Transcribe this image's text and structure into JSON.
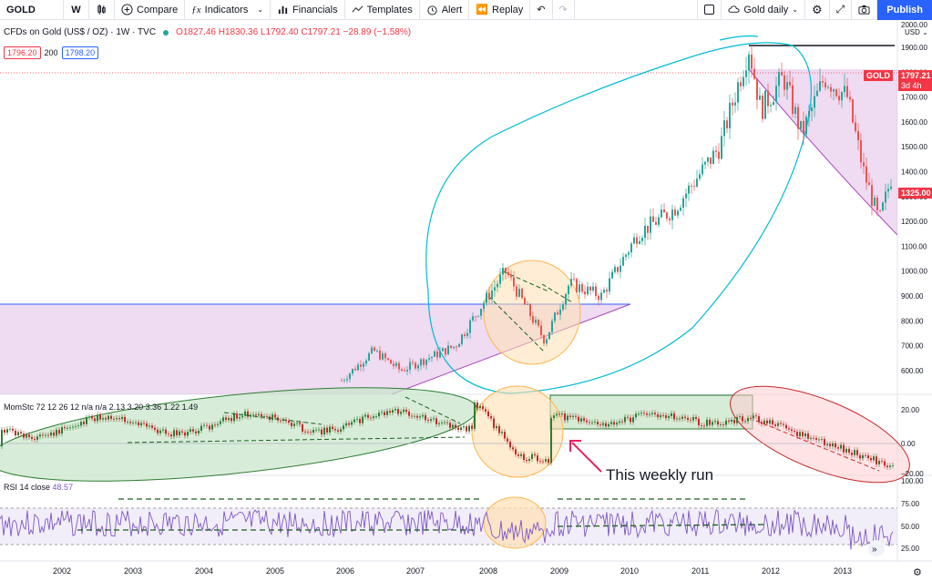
{
  "toolbar": {
    "symbol": "GOLD",
    "interval": "W",
    "compare": "Compare",
    "indicators": "Indicators",
    "financials": "Financials",
    "templates": "Templates",
    "alert": "Alert",
    "replay": "Replay",
    "layout_name": "Gold daily",
    "publish": "Publish"
  },
  "legend": {
    "title": "CFDs on Gold (US$ / OZ) · 1W · TVC",
    "ohlc": "O1827.46  H1830.36  L1792.40  C1797.21  −28.89 (−1.58%)",
    "bid": "1796.20",
    "spread": "200",
    "ask": "1798.20"
  },
  "price_axis": {
    "currency": "USD",
    "labels": [
      "2000.00",
      "1900.00",
      "1800.00",
      "1700.00",
      "1600.00",
      "1500.00",
      "1400.00",
      "1300.00",
      "1200.00",
      "1100.00",
      "1000.00",
      "900.00",
      "800.00",
      "700.00",
      "600.00"
    ],
    "last_price_tag": "GOLD",
    "last_price": "1797.21",
    "countdown": "3d 4h",
    "cursor_price": "1325.00"
  },
  "momentum": {
    "header": "MomStc 72 12 26 12  n/a  n/a  2.13  3.20  3.36  1.22  1.49",
    "labels": [
      "20.00",
      "0.00",
      "−20.00"
    ]
  },
  "rsi": {
    "label": "RSI 14 close",
    "value": "48.57",
    "labels": [
      "100.00",
      "75.00",
      "50.00",
      "25.00"
    ]
  },
  "time_axis": {
    "years": [
      "2002",
      "2003",
      "2004",
      "2005",
      "2006",
      "2007",
      "2008",
      "2009",
      "2010",
      "2011",
      "2012",
      "2013"
    ]
  },
  "annotation": "This weekly run",
  "colors": {
    "up": "#26a69a",
    "down": "#ef5350",
    "accent": "#2962ff",
    "rsi": "#7e57c2",
    "ellipse": "#00bcd4"
  },
  "chart_data": {
    "type": "candlestick",
    "title": "CFDs on Gold (US$ / OZ)",
    "interval": "1W",
    "ylim": [
      550,
      2000
    ],
    "x": [
      "2002",
      "2003",
      "2004",
      "2005",
      "2006",
      "2007",
      "2008",
      "2009",
      "2010",
      "2011",
      "2012",
      "2013"
    ],
    "series": [
      {
        "close_approx": [
          null,
          null,
          null,
          null,
          560,
          640,
          900,
          870,
          1110,
          1420,
          1650,
          1250
        ]
      }
    ]
  }
}
